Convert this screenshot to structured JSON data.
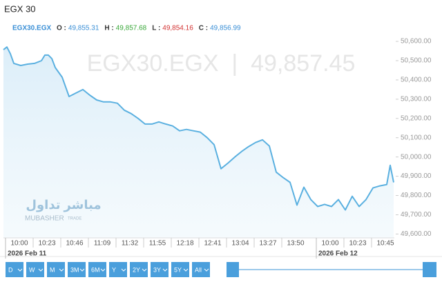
{
  "chart_data": {
    "type": "area",
    "title": "EGX 30",
    "symbol": "EGX30.EGX",
    "ohlc": [
      {
        "label": "O :",
        "value": "49,855.31",
        "color": "#3a8fd6"
      },
      {
        "label": "H :",
        "value": "49,857.68",
        "color": "#3aa83a"
      },
      {
        "label": "L :",
        "value": "49,854.16",
        "color": "#d23030"
      },
      {
        "label": "C :",
        "value": "49,856.99",
        "color": "#3a8fd6"
      }
    ],
    "watermark": "EGX30.EGX  |  49,857.45",
    "logo": [
      "مباشر تداول",
      "MUBASHER",
      "TRADE"
    ],
    "color": "#5ab0e0",
    "x": [
      -2.3,
      -1.8,
      -1.3,
      -0.8,
      0.2,
      1.2,
      2.2,
      3.2,
      3.7,
      4.2,
      4.7,
      5.2,
      6.2,
      7.2,
      8.2,
      9.2,
      10.2,
      11.2,
      12.2,
      13.2,
      14.2,
      15.2,
      16.2,
      17.2,
      18.2,
      19.2,
      20.2,
      21.2,
      22.2,
      23.2,
      24.2,
      25.2,
      26.2,
      27.2,
      28.2,
      29.2,
      30.2,
      31.2,
      32.2,
      33.2,
      34.2,
      35.2,
      36.2,
      37.2,
      38.2,
      39.2,
      40.2,
      41.2,
      42.2,
      43.2,
      44.2,
      45.2,
      46.2,
      47.2,
      48.2,
      49.2,
      50.2,
      51.2,
      52.2,
      53.2,
      53.7,
      54.2
    ],
    "values": [
      50557,
      50571,
      50536,
      50486,
      50475,
      50482,
      50486,
      50500,
      50529,
      50529,
      50511,
      50464,
      50414,
      50314,
      50332,
      50350,
      50321,
      50296,
      50286,
      50286,
      50279,
      50243,
      50225,
      50200,
      50171,
      50171,
      50182,
      50171,
      50161,
      50136,
      50143,
      50136,
      50129,
      50100,
      50064,
      49939,
      49968,
      50000,
      50029,
      50054,
      50075,
      50089,
      50057,
      49921,
      49893,
      49868,
      49750,
      49843,
      49779,
      49743,
      49754,
      49743,
      49779,
      49725,
      49796,
      49743,
      49779,
      49839,
      49850,
      49857,
      49957,
      49868
    ],
    "xlim": [
      -2.3,
      54.3
    ],
    "xticks": [
      {
        "value": 0,
        "label": "10:00"
      },
      {
        "value": 4,
        "label": "10:23"
      },
      {
        "value": 8,
        "label": "10:46"
      },
      {
        "value": 12,
        "label": "11:09"
      },
      {
        "value": 16,
        "label": "11:32"
      },
      {
        "value": 20,
        "label": "11:55"
      },
      {
        "value": 24,
        "label": "12:18"
      },
      {
        "value": 28,
        "label": "12:41"
      },
      {
        "value": 32,
        "label": "13:04"
      },
      {
        "value": 36,
        "label": "13:27"
      },
      {
        "value": 40,
        "label": "13:50"
      },
      {
        "value": 45,
        "label": "10:00"
      },
      {
        "value": 49,
        "label": "10:23"
      },
      {
        "value": 53,
        "label": "10:45"
      }
    ],
    "date_labels": [
      "2026 Feb 11",
      "2026 Feb 12"
    ],
    "ylim": [
      49580,
      50636
    ],
    "yticks": [
      {
        "value": 50600,
        "label": "50,600.00"
      },
      {
        "value": 50500,
        "label": "50,500.00"
      },
      {
        "value": 50400,
        "label": "50,400.00"
      },
      {
        "value": 50300,
        "label": "50,300.00"
      },
      {
        "value": 50200,
        "label": "50,200.00"
      },
      {
        "value": 50100,
        "label": "50,100.00"
      },
      {
        "value": 50000,
        "label": "50,000.00"
      },
      {
        "value": 49900,
        "label": "49,900.00"
      },
      {
        "value": 49800,
        "label": "49,800.00"
      },
      {
        "value": 49700,
        "label": "49,700.00"
      },
      {
        "value": 49600,
        "label": "49,600.00"
      }
    ],
    "range_buttons": [
      "D",
      "W",
      "M",
      "3M",
      "6M",
      "Y",
      "2Y",
      "3Y",
      "5Y",
      "All"
    ]
  }
}
